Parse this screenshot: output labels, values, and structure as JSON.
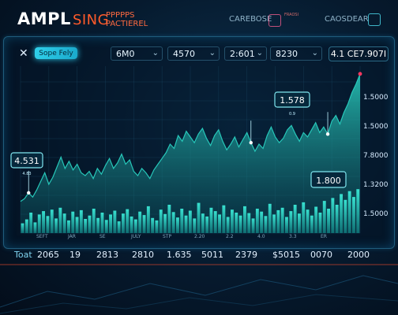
{
  "header": {
    "brand": "AMPL",
    "brand_accent": "SING",
    "subtitle_line1": "PPPPPS",
    "subtitle_line2": "PACTIEREL",
    "link1": "CAREBOSE",
    "link2": "CAOSDEAR",
    "small_text": "FRAOSI"
  },
  "toolbar": {
    "close_label": "✕",
    "search_label": "Sope Fely",
    "dropdowns": [
      "6M0",
      "4570",
      "2:601",
      "8230"
    ],
    "price_label": "4.1 CE7.907I"
  },
  "callouts": {
    "left": "4.531",
    "left_sub": "4.83",
    "top": "1.578",
    "top_sub": "0.9",
    "right": "1.800"
  },
  "footer": {
    "label": "Toat",
    "values": [
      "2065",
      "19",
      "2813",
      "2810",
      "1.635",
      "5011",
      "2379",
      "$5015",
      "0070",
      "2000"
    ]
  },
  "colors": {
    "area_fill": "#1a8b8a",
    "area_line": "#27c7b9",
    "bar": "#1fb5a6",
    "accent": "#ff5a2a",
    "marker": "#ff3860",
    "frame": "#1f5c7c"
  },
  "chart_data": {
    "type": "area",
    "ylabels": [
      "1.5000",
      "1.5000",
      "7.8000",
      "1.3200",
      "1.5000"
    ],
    "xlabels": [
      "SEFT",
      "JAR",
      "SE",
      "JULY",
      "STP",
      "2.20",
      "2.2",
      "4.0",
      "3.3",
      "ER"
    ],
    "line": [
      0.1,
      0.12,
      0.16,
      0.13,
      0.18,
      0.24,
      0.3,
      0.22,
      0.27,
      0.34,
      0.41,
      0.33,
      0.38,
      0.32,
      0.36,
      0.3,
      0.28,
      0.31,
      0.26,
      0.33,
      0.29,
      0.35,
      0.4,
      0.33,
      0.37,
      0.43,
      0.36,
      0.39,
      0.31,
      0.28,
      0.33,
      0.3,
      0.26,
      0.32,
      0.36,
      0.4,
      0.44,
      0.5,
      0.47,
      0.56,
      0.52,
      0.59,
      0.55,
      0.51,
      0.57,
      0.61,
      0.54,
      0.49,
      0.56,
      0.6,
      0.52,
      0.46,
      0.5,
      0.55,
      0.48,
      0.53,
      0.58,
      0.51,
      0.45,
      0.5,
      0.47,
      0.56,
      0.62,
      0.55,
      0.51,
      0.54,
      0.6,
      0.63,
      0.57,
      0.52,
      0.58,
      0.55,
      0.6,
      0.65,
      0.58,
      0.62,
      0.57,
      0.66,
      0.7,
      0.64,
      0.72,
      0.78,
      0.86,
      0.92,
      0.99
    ],
    "bars": [
      0.2,
      0.28,
      0.42,
      0.22,
      0.38,
      0.45,
      0.35,
      0.48,
      0.3,
      0.52,
      0.4,
      0.26,
      0.44,
      0.33,
      0.47,
      0.29,
      0.36,
      0.5,
      0.31,
      0.42,
      0.27,
      0.38,
      0.46,
      0.24,
      0.4,
      0.49,
      0.34,
      0.28,
      0.44,
      0.37,
      0.55,
      0.31,
      0.26,
      0.48,
      0.39,
      0.58,
      0.43,
      0.32,
      0.5,
      0.36,
      0.46,
      0.3,
      0.62,
      0.4,
      0.34,
      0.52,
      0.45,
      0.38,
      0.57,
      0.33,
      0.48,
      0.42,
      0.36,
      0.55,
      0.41,
      0.3,
      0.5,
      0.44,
      0.35,
      0.6,
      0.38,
      0.47,
      0.52,
      0.33,
      0.45,
      0.58,
      0.4,
      0.63,
      0.48,
      0.36,
      0.54,
      0.42,
      0.66,
      0.5,
      0.72,
      0.58,
      0.8,
      0.68,
      0.86,
      0.74,
      0.9
    ],
    "markers": [
      {
        "index": 2,
        "label_ref": "left"
      },
      {
        "index": 57,
        "label_ref": "top"
      },
      {
        "index": 76,
        "label_ref": "right"
      }
    ]
  }
}
